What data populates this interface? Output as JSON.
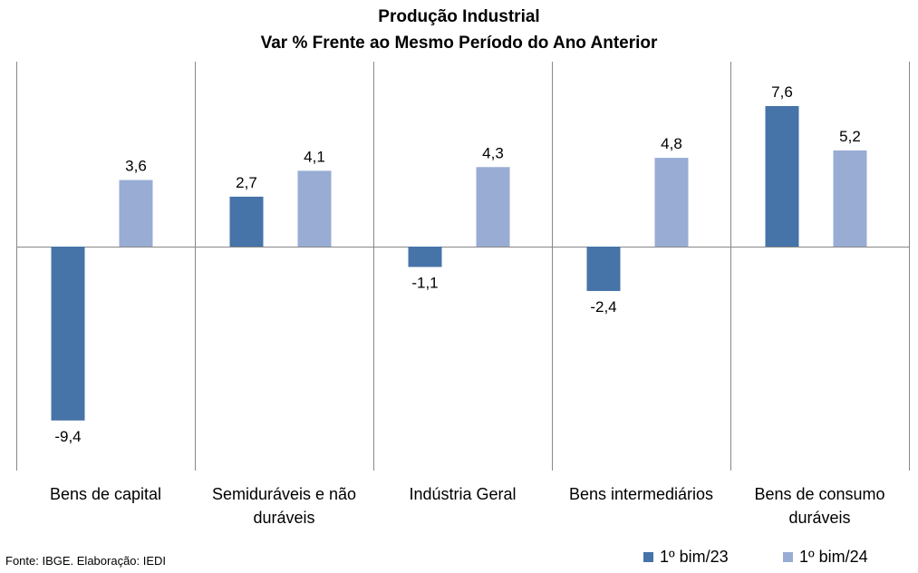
{
  "chart_data": {
    "type": "bar",
    "title": "Produção Industrial",
    "subtitle": "Var % Frente ao Mesmo Período do Ano Anterior",
    "categories": [
      [
        "Bens de capital"
      ],
      [
        "Semiduráveis e não",
        "duráveis"
      ],
      [
        "Indústria Geral"
      ],
      [
        "Bens intermediários"
      ],
      [
        "Bens de consumo",
        "duráveis"
      ]
    ],
    "series": [
      {
        "name": "1º bim/23",
        "color": "#4673A8",
        "values": [
          -9.4,
          2.7,
          -1.1,
          -2.4,
          7.6
        ],
        "labels": [
          "-9,4",
          "2,7",
          "-1,1",
          "-2,4",
          "7,6"
        ]
      },
      {
        "name": "1º bim/24",
        "color": "#98ACD4",
        "values": [
          3.6,
          4.1,
          4.3,
          4.8,
          5.2
        ],
        "labels": [
          "3,6",
          "4,1",
          "4,3",
          "4,8",
          "5,2"
        ]
      }
    ],
    "ylim": [
      -12.2,
      10
    ],
    "grid": false,
    "legend_position": "bottom-right",
    "data_labels": true
  },
  "source": "Fonte: IBGE. Elaboração: IEDI"
}
